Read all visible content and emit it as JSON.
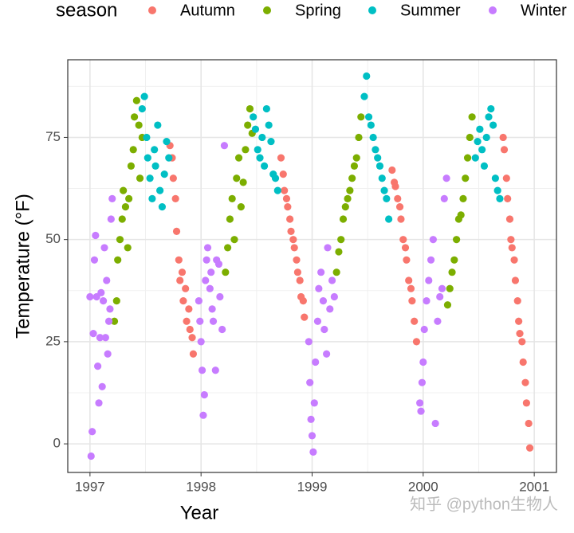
{
  "chart_data": {
    "type": "scatter",
    "x_label": "Year",
    "y_label": "Temperature (°F)",
    "legend_title": "season",
    "watermark": "知乎 @python生物人",
    "xlim": [
      1996.8,
      2001.2
    ],
    "ylim": [
      -7,
      94
    ],
    "xticks": [
      1997,
      1998,
      1999,
      2000,
      2001
    ],
    "yticks": [
      0,
      25,
      50,
      75
    ],
    "x_minor_grid": [
      1997.5,
      1998.5,
      1999.5,
      2000.5
    ],
    "y_minor_grid": [
      12.5,
      37.5,
      62.5,
      87.5
    ],
    "grid": true,
    "legend": "top",
    "series": [
      {
        "name": "Autumn",
        "color": "#F8766D",
        "x": [
          1997.72,
          1997.74,
          1997.75,
          1997.77,
          1997.78,
          1997.8,
          1997.81,
          1997.83,
          1997.84,
          1997.86,
          1997.87,
          1997.89,
          1997.9,
          1997.92,
          1997.93,
          1998.72,
          1998.74,
          1998.75,
          1998.77,
          1998.78,
          1998.8,
          1998.81,
          1998.83,
          1998.84,
          1998.86,
          1998.87,
          1998.89,
          1998.9,
          1998.92,
          1998.93,
          1999.72,
          1999.74,
          1999.75,
          1999.77,
          1999.79,
          1999.8,
          1999.82,
          1999.84,
          1999.85,
          1999.87,
          1999.89,
          1999.9,
          1999.92,
          1999.94,
          2000.72,
          2000.73,
          2000.75,
          2000.76,
          2000.78,
          2000.79,
          2000.8,
          2000.82,
          2000.83,
          2000.85,
          2000.86,
          2000.87,
          2000.89,
          2000.9,
          2000.92,
          2000.93,
          2000.95,
          2000.96
        ],
        "values": [
          73,
          70,
          65,
          60,
          52,
          45,
          40,
          42,
          35,
          38,
          30,
          33,
          28,
          26,
          22,
          70,
          66,
          62,
          60,
          58,
          55,
          52,
          50,
          48,
          45,
          42,
          40,
          36,
          35,
          31,
          67,
          64,
          63,
          60,
          58,
          55,
          50,
          48,
          45,
          40,
          38,
          35,
          30,
          25,
          75,
          72,
          65,
          60,
          55,
          50,
          48,
          45,
          40,
          35,
          30,
          27,
          25,
          20,
          15,
          10,
          5,
          -1
        ]
      },
      {
        "name": "Spring",
        "color": "#7CAE00",
        "x": [
          1997.22,
          1997.24,
          1997.25,
          1997.27,
          1997.29,
          1997.3,
          1997.32,
          1997.34,
          1997.35,
          1997.37,
          1997.39,
          1997.4,
          1997.42,
          1997.44,
          1997.45,
          1997.47,
          1998.22,
          1998.24,
          1998.26,
          1998.28,
          1998.3,
          1998.32,
          1998.34,
          1998.36,
          1998.38,
          1998.4,
          1998.42,
          1998.44,
          1998.46,
          1999.22,
          1999.24,
          1999.26,
          1999.28,
          1999.3,
          1999.32,
          1999.34,
          1999.36,
          1999.38,
          1999.4,
          1999.42,
          1999.44,
          2000.22,
          2000.24,
          2000.26,
          2000.28,
          2000.3,
          2000.32,
          2000.34,
          2000.36,
          2000.38,
          2000.4,
          2000.42,
          2000.44
        ],
        "values": [
          30,
          35,
          45,
          50,
          55,
          62,
          58,
          48,
          60,
          68,
          72,
          80,
          84,
          78,
          65,
          75,
          42,
          48,
          55,
          60,
          50,
          65,
          70,
          58,
          64,
          72,
          78,
          82,
          76,
          42,
          47,
          50,
          55,
          58,
          60,
          62,
          65,
          68,
          70,
          75,
          80,
          34,
          38,
          42,
          45,
          50,
          55,
          56,
          60,
          65,
          70,
          75,
          80
        ]
      },
      {
        "name": "Summer",
        "color": "#00BFC4",
        "x": [
          1997.47,
          1997.49,
          1997.51,
          1997.52,
          1997.54,
          1997.56,
          1997.58,
          1997.59,
          1997.61,
          1997.63,
          1997.65,
          1997.67,
          1997.69,
          1997.71,
          1998.47,
          1998.49,
          1998.51,
          1998.53,
          1998.55,
          1998.57,
          1998.59,
          1998.61,
          1998.63,
          1998.65,
          1998.67,
          1998.69,
          1999.47,
          1999.49,
          1999.51,
          1999.53,
          1999.55,
          1999.57,
          1999.59,
          1999.61,
          1999.63,
          1999.65,
          1999.67,
          1999.69,
          2000.47,
          2000.49,
          2000.51,
          2000.53,
          2000.55,
          2000.57,
          2000.59,
          2000.61,
          2000.63,
          2000.65,
          2000.67,
          2000.69
        ],
        "values": [
          82,
          85,
          75,
          70,
          65,
          60,
          72,
          68,
          78,
          62,
          58,
          66,
          74,
          70,
          80,
          77,
          72,
          70,
          75,
          68,
          82,
          78,
          74,
          66,
          65,
          62,
          85,
          90,
          80,
          78,
          75,
          72,
          70,
          68,
          65,
          62,
          60,
          55,
          70,
          74,
          77,
          72,
          68,
          75,
          80,
          82,
          78,
          65,
          62,
          60
        ]
      },
      {
        "name": "Winter",
        "color": "#C77CFF",
        "x": [
          1997.0,
          1997.01,
          1997.02,
          1997.03,
          1997.04,
          1997.05,
          1997.06,
          1997.07,
          1997.08,
          1997.09,
          1997.1,
          1997.11,
          1997.12,
          1997.13,
          1997.14,
          1997.15,
          1997.16,
          1997.17,
          1997.18,
          1997.19,
          1997.2,
          1997.98,
          1997.99,
          1998.0,
          1998.01,
          1998.02,
          1998.03,
          1998.04,
          1998.05,
          1998.06,
          1998.08,
          1998.09,
          1998.1,
          1998.11,
          1998.13,
          1998.14,
          1998.16,
          1998.17,
          1998.19,
          1998.21,
          1998.97,
          1998.98,
          1998.99,
          1999.0,
          1999.01,
          1999.02,
          1999.03,
          1999.05,
          1999.06,
          1999.08,
          1999.1,
          1999.11,
          1999.13,
          1999.14,
          1999.16,
          1999.18,
          1999.2,
          1999.97,
          1999.98,
          1999.99,
          2000.0,
          2000.01,
          2000.03,
          2000.05,
          2000.07,
          2000.09,
          2000.11,
          2000.13,
          2000.15,
          2000.17,
          2000.19,
          2000.21
        ],
        "values": [
          36,
          -3,
          3,
          27,
          45,
          51,
          36,
          19,
          10,
          26,
          37,
          14,
          35,
          48,
          26,
          40,
          22,
          30,
          33,
          55,
          60,
          35,
          30,
          25,
          18,
          7,
          12,
          40,
          45,
          48,
          38,
          42,
          33,
          30,
          18,
          45,
          44,
          36,
          28,
          73,
          25,
          15,
          6,
          2,
          -2,
          10,
          20,
          30,
          38,
          42,
          35,
          28,
          22,
          48,
          33,
          40,
          36,
          10,
          8,
          15,
          20,
          28,
          35,
          40,
          45,
          50,
          5,
          30,
          36,
          38,
          60,
          65
        ]
      }
    ]
  }
}
